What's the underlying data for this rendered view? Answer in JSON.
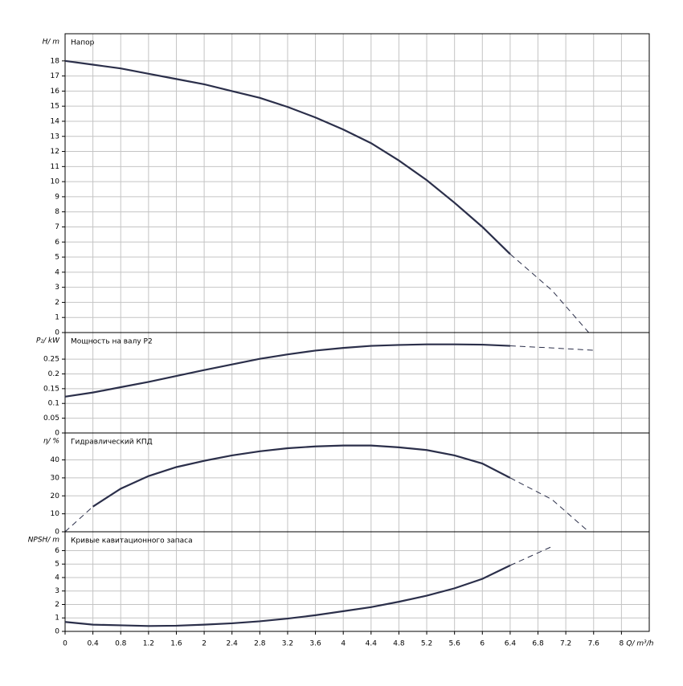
{
  "chart_data": [
    {
      "type": "line",
      "title": "Напор",
      "ylabel": "H/ m",
      "ylim": [
        0,
        19.8
      ],
      "yticks": [
        0,
        1,
        2,
        3,
        4,
        5,
        6,
        7,
        8,
        9,
        10,
        11,
        12,
        13,
        14,
        15,
        16,
        17,
        18
      ],
      "grid": true,
      "series": [
        {
          "color": "#2b2f4a",
          "style": "solid",
          "x": [
            0,
            0.4,
            0.8,
            1.2,
            1.6,
            2,
            2.4,
            2.8,
            3.2,
            3.6,
            4,
            4.4,
            4.8,
            5.2,
            5.6,
            6,
            6.4
          ],
          "values": [
            18,
            17.75,
            17.5,
            17.15,
            16.8,
            16.45,
            16.0,
            15.55,
            14.95,
            14.25,
            13.45,
            12.55,
            11.4,
            10.1,
            8.6,
            7.0,
            5.2
          ]
        },
        {
          "color": "#2b2f4a",
          "style": "dashed",
          "x": [
            6.4,
            7.0,
            7.53
          ],
          "values": [
            5.2,
            2.8,
            0
          ]
        }
      ]
    },
    {
      "type": "line",
      "title": "Мощность на валу P2",
      "ylabel": "P₂/ kW",
      "ylim": [
        0,
        0.34
      ],
      "yticks": [
        0,
        0.05,
        0.1,
        0.15,
        0.2,
        0.25
      ],
      "grid": true,
      "series": [
        {
          "color": "#2b2f4a",
          "style": "solid",
          "x": [
            0,
            0.4,
            0.8,
            1.2,
            1.6,
            2,
            2.4,
            2.8,
            3.2,
            3.6,
            4,
            4.4,
            4.8,
            5.2,
            5.6,
            6,
            6.4
          ],
          "values": [
            0.123,
            0.137,
            0.155,
            0.173,
            0.193,
            0.213,
            0.232,
            0.251,
            0.266,
            0.279,
            0.288,
            0.295,
            0.298,
            0.3,
            0.3,
            0.299,
            0.295
          ]
        },
        {
          "color": "#2b2f4a",
          "style": "dashed",
          "x": [
            6.4,
            7.0,
            7.6
          ],
          "values": [
            0.295,
            0.288,
            0.28
          ]
        }
      ]
    },
    {
      "type": "line",
      "title": "Гидравлический КПД",
      "ylabel": "η/ %",
      "ylim": [
        0,
        55
      ],
      "yticks": [
        0,
        10,
        20,
        30,
        40
      ],
      "grid": true,
      "series": [
        {
          "color": "#2b2f4a",
          "style": "dashed",
          "x": [
            0,
            0.4
          ],
          "values": [
            0,
            14
          ]
        },
        {
          "color": "#2b2f4a",
          "style": "solid",
          "x": [
            0.4,
            0.8,
            1.2,
            1.6,
            2,
            2.4,
            2.8,
            3.2,
            3.6,
            4,
            4.4,
            4.8,
            5.2,
            5.6,
            6,
            6.4
          ],
          "values": [
            14,
            24,
            31,
            36,
            39.5,
            42.5,
            44.8,
            46.5,
            47.5,
            48,
            48,
            47,
            45.5,
            42.5,
            38,
            30
          ]
        },
        {
          "color": "#2b2f4a",
          "style": "dashed",
          "x": [
            6.4,
            7.0,
            7.53
          ],
          "values": [
            30,
            18,
            0
          ]
        }
      ]
    },
    {
      "type": "line",
      "title": "Кривые кавитационного запаса",
      "ylabel": "NPSH/ m",
      "ylim": [
        0,
        7.4
      ],
      "yticks": [
        0,
        1,
        2,
        3,
        4,
        5,
        6
      ],
      "grid": true,
      "xlabel": "Q/ m³/h",
      "xlim": [
        0,
        8.4
      ],
      "xticks": [
        0,
        0.4,
        0.8,
        1.2,
        1.6,
        2,
        2.4,
        2.8,
        3.2,
        3.6,
        4,
        4.4,
        4.8,
        5.2,
        5.6,
        6,
        6.4,
        6.8,
        7.2,
        7.6,
        8
      ],
      "series": [
        {
          "color": "#2b2f4a",
          "style": "solid",
          "x": [
            0,
            0.4,
            0.8,
            1.2,
            1.6,
            2,
            2.4,
            2.8,
            3.2,
            3.6,
            4,
            4.4,
            4.8,
            5.2,
            5.6,
            6,
            6.4
          ],
          "values": [
            0.7,
            0.5,
            0.45,
            0.4,
            0.42,
            0.5,
            0.6,
            0.75,
            0.95,
            1.2,
            1.5,
            1.8,
            2.2,
            2.65,
            3.2,
            3.9,
            4.9
          ]
        },
        {
          "color": "#2b2f4a",
          "style": "dashed",
          "x": [
            6.4,
            7.0
          ],
          "values": [
            4.9,
            6.3
          ]
        }
      ]
    }
  ]
}
